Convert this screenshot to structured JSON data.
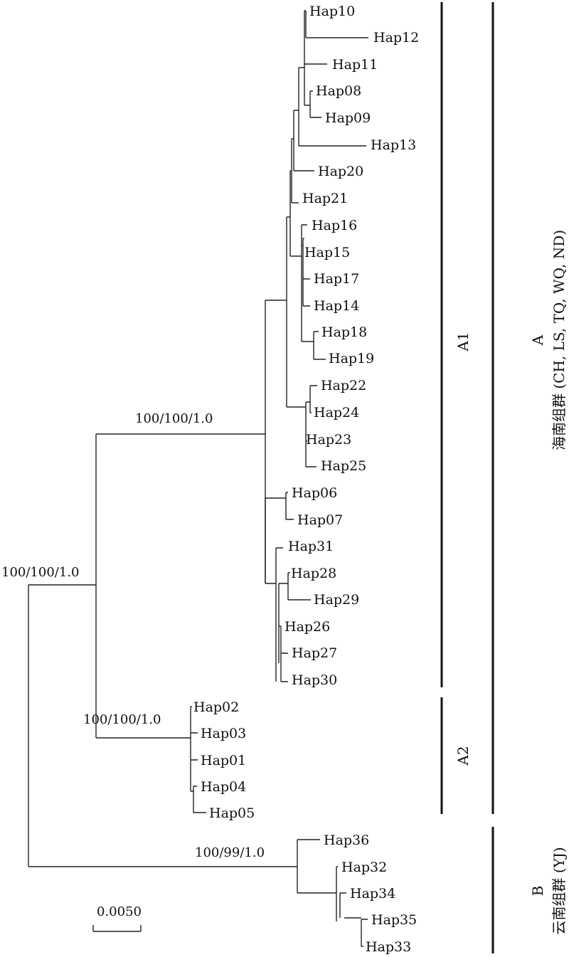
{
  "tips": [
    "Hap10",
    "Hap12",
    "Hap11",
    "Hap08",
    "Hap09",
    "Hap13",
    "Hap20",
    "Hap21",
    "Hap16",
    "Hap15",
    "Hap17",
    "Hap14",
    "Hap18",
    "Hap19",
    "Hap22",
    "Hap24",
    "Hap23",
    "Hap25",
    "Hap06",
    "Hap07",
    "Hap31",
    "Hap28",
    "Hap29",
    "Hap26",
    "Hap27",
    "Hap30",
    "Hap02",
    "Hap03",
    "Hap01",
    "Hap04",
    "Hap05",
    "Hap36",
    "Hap32",
    "Hap34",
    "Hap35",
    "Hap33"
  ],
  "support_values": {
    "root": "100/100/1.0",
    "cladeA1": "100/100/1.0",
    "cladeA2": "100/100/1.0",
    "cladeB": "100/99/1.0"
  },
  "subclades": {
    "a1": "A1",
    "a2": "A2"
  },
  "groups": {
    "a": {
      "letter": "A",
      "name": "海南组群 (CH, LS, TQ, WQ, ND)"
    },
    "b": {
      "letter": "B",
      "name": "云南组群 (YJ)"
    }
  },
  "scale_bar": {
    "label": "0.0050"
  }
}
